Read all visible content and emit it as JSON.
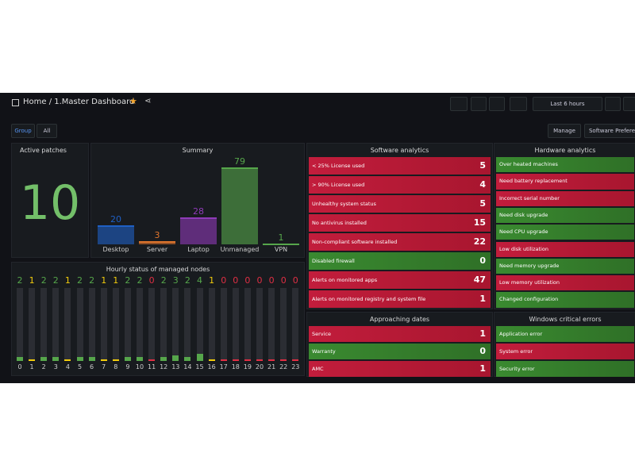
{
  "header": {
    "breadcrumb": "Home / 1.Master Dashboard",
    "time_range": "Last 6 hours"
  },
  "controls": {
    "group_label": "Group",
    "group_value": "All",
    "buttons": [
      "Manage",
      "Software Prefere"
    ]
  },
  "active_patches": {
    "title": "Active patches",
    "value": 10
  },
  "summary": {
    "title": "Summary",
    "categories": [
      "Desktop",
      "Server",
      "Laptop",
      "Unmanaged",
      "VPN"
    ],
    "values": [
      20,
      3,
      28,
      79,
      1
    ],
    "colors": [
      "#1f60c4",
      "#e0752d",
      "#8f3bb8",
      "#56a64b",
      "#56a64b"
    ],
    "ylim": [
      0,
      90
    ]
  },
  "hourly": {
    "title": "Hourly status of managed nodes",
    "hours": [
      0,
      1,
      2,
      3,
      4,
      5,
      6,
      7,
      8,
      9,
      10,
      11,
      12,
      13,
      14,
      15,
      16,
      17,
      18,
      19,
      20,
      21,
      22,
      23
    ],
    "values": [
      2,
      1,
      2,
      2,
      1,
      2,
      2,
      1,
      1,
      2,
      2,
      0,
      2,
      3,
      2,
      4,
      1,
      0,
      0,
      0,
      0,
      0,
      0,
      0
    ],
    "colors": [
      "#56a64b",
      "#f2cc0c",
      "#56a64b",
      "#56a64b",
      "#f2cc0c",
      "#56a64b",
      "#56a64b",
      "#f2cc0c",
      "#f2cc0c",
      "#56a64b",
      "#56a64b",
      "#e02f44",
      "#56a64b",
      "#56a64b",
      "#56a64b",
      "#56a64b",
      "#f2cc0c",
      "#e02f44",
      "#e02f44",
      "#e02f44",
      "#e02f44",
      "#e02f44",
      "#e02f44",
      "#e02f44"
    ],
    "ylim": [
      0,
      40
    ]
  },
  "software_analytics": {
    "title": "Software analytics",
    "rows": [
      {
        "label": "< 25% License used",
        "value": 5,
        "color": "red"
      },
      {
        "label": "> 90% License used",
        "value": 4,
        "color": "red"
      },
      {
        "label": "Unhealthy system status",
        "value": 5,
        "color": "red"
      },
      {
        "label": "No antivirus installed",
        "value": 15,
        "color": "red"
      },
      {
        "label": "Non-compliant software installed",
        "value": 22,
        "color": "red"
      },
      {
        "label": "Disabled firewall",
        "value": 0,
        "color": "green"
      },
      {
        "label": "Alerts on monitored apps",
        "value": 47,
        "color": "red"
      },
      {
        "label": "Alerts on monitored registry and system file",
        "value": 1,
        "color": "red"
      }
    ]
  },
  "hardware_analytics": {
    "title": "Hardware analytics",
    "rows": [
      {
        "label": "Over heated machines",
        "color": "green"
      },
      {
        "label": "Need battery replacement",
        "color": "red"
      },
      {
        "label": "Incorrect serial number",
        "color": "red"
      },
      {
        "label": "Need disk upgrade",
        "color": "green"
      },
      {
        "label": "Need CPU upgrade",
        "color": "green"
      },
      {
        "label": "Low disk utilization",
        "color": "red"
      },
      {
        "label": "Need memory upgrade",
        "color": "green"
      },
      {
        "label": "Low memory utilization",
        "color": "red"
      },
      {
        "label": "Changed configuration",
        "color": "green"
      }
    ]
  },
  "approaching_dates": {
    "title": "Approaching dates",
    "rows": [
      {
        "label": "Service",
        "value": 1,
        "color": "red"
      },
      {
        "label": "Warranty",
        "value": 0,
        "color": "green"
      },
      {
        "label": "AMC",
        "value": 1,
        "color": "red"
      }
    ]
  },
  "windows_errors": {
    "title": "Windows critical errors",
    "rows": [
      {
        "label": "Application error",
        "color": "green"
      },
      {
        "label": "System error",
        "color": "red"
      },
      {
        "label": "Security error",
        "color": "green"
      }
    ]
  }
}
